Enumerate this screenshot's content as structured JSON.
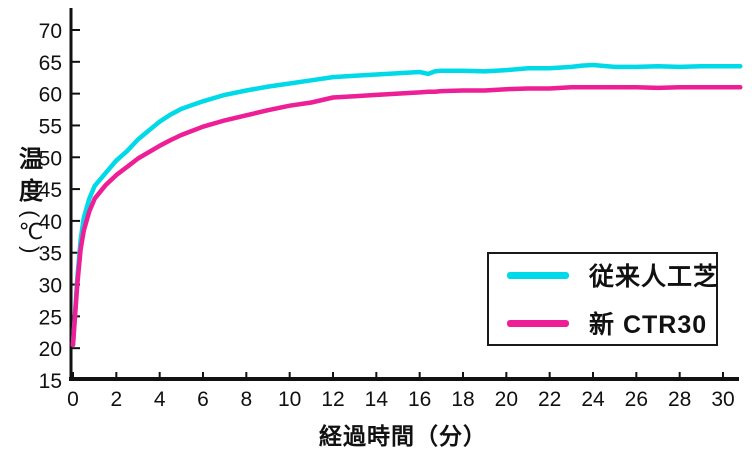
{
  "chart_data": {
    "type": "line",
    "title": "",
    "xlabel": "経過時間（分）",
    "ylabel": "温度(℃)",
    "ylabel_parts": [
      "温",
      "度",
      "(",
      "℃",
      ")"
    ],
    "xlim": [
      0,
      30.8
    ],
    "ylim": [
      15,
      70
    ],
    "xticks": [
      0,
      2,
      4,
      6,
      8,
      10,
      12,
      14,
      16,
      18,
      20,
      22,
      24,
      26,
      28,
      30
    ],
    "yticks": [
      15,
      20,
      25,
      30,
      35,
      40,
      45,
      50,
      55,
      60,
      65,
      70
    ],
    "grid": false,
    "legend_position": "lower right",
    "background_color": "#ffffff",
    "axis_color": "#111111",
    "series": [
      {
        "name": "従来人工芝",
        "key": "conventional-artificial-turf",
        "color": "#00d9e8",
        "x": [
          0,
          0.2,
          0.35,
          0.5,
          0.75,
          1,
          1.5,
          2,
          2.5,
          3,
          3.5,
          4,
          4.5,
          5,
          6,
          7,
          8,
          9,
          10,
          11,
          12,
          13,
          14,
          15,
          16,
          16.4,
          16.7,
          17,
          18,
          19,
          20,
          21,
          22,
          23,
          23.5,
          24,
          25,
          26,
          27,
          28,
          29,
          30,
          30.8
        ],
        "values": [
          20.5,
          31,
          37,
          40.5,
          43.5,
          45.5,
          47.5,
          49.5,
          51,
          52.8,
          54.2,
          55.6,
          56.7,
          57.6,
          58.8,
          59.8,
          60.5,
          61.1,
          61.6,
          62.1,
          62.6,
          62.8,
          63.0,
          63.2,
          63.4,
          63.1,
          63.5,
          63.6,
          63.6,
          63.5,
          63.7,
          64.0,
          64.0,
          64.2,
          64.4,
          64.5,
          64.2,
          64.2,
          64.3,
          64.2,
          64.3,
          64.3,
          64.3
        ]
      },
      {
        "name": "新 CTR30",
        "key": "new-ctr30",
        "color": "#ed1e96",
        "x": [
          0,
          0.2,
          0.35,
          0.5,
          0.75,
          1,
          1.5,
          2,
          2.5,
          3,
          3.5,
          4,
          4.5,
          5,
          6,
          7,
          8,
          9,
          10,
          11,
          12,
          13,
          14,
          15,
          16,
          16.4,
          16.7,
          17,
          18,
          19,
          20,
          21,
          22,
          23,
          23.5,
          24,
          25,
          26,
          27,
          28,
          29,
          30,
          30.8
        ],
        "values": [
          20.5,
          30,
          35.5,
          38.5,
          41.5,
          43.5,
          45.6,
          47.2,
          48.5,
          49.8,
          50.8,
          51.8,
          52.7,
          53.5,
          54.8,
          55.8,
          56.6,
          57.4,
          58.1,
          58.6,
          59.4,
          59.6,
          59.8,
          60.0,
          60.2,
          60.3,
          60.3,
          60.4,
          60.5,
          60.5,
          60.7,
          60.8,
          60.8,
          61.0,
          61.0,
          61.0,
          61.0,
          61.0,
          60.9,
          61.0,
          61.0,
          61.0,
          61.0
        ]
      }
    ]
  }
}
